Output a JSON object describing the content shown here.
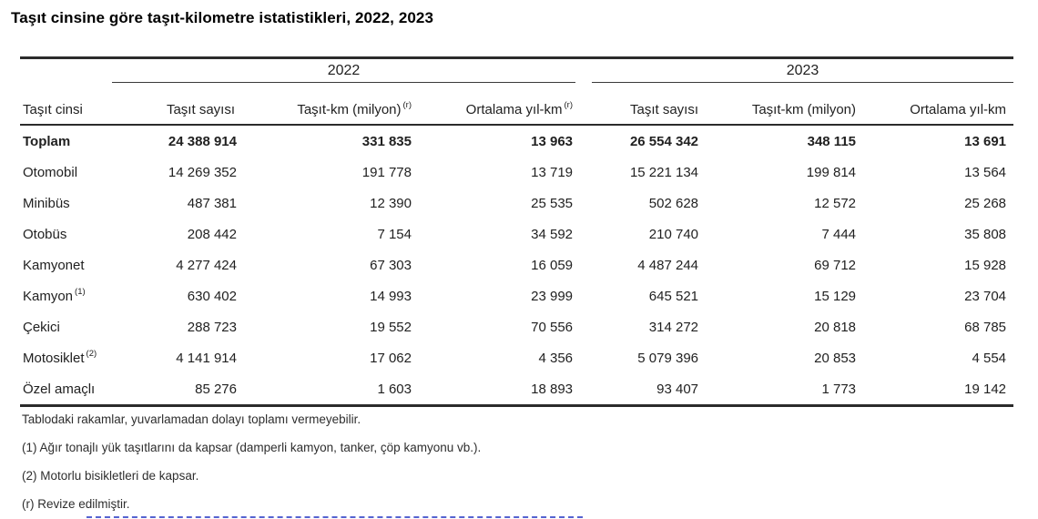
{
  "title": "Taşıt cinsine göre taşıt-kilometre istatistikleri, 2022, 2023",
  "table": {
    "row_header": "Taşıt cinsi",
    "year_groups": [
      {
        "year": "2022",
        "columns": [
          {
            "label": "Taşıt sayısı",
            "sup": ""
          },
          {
            "label": "Taşıt-km (milyon)",
            "sup": "(r)"
          },
          {
            "label": "Ortalama yıl-km",
            "sup": "(r)"
          }
        ]
      },
      {
        "year": "2023",
        "columns": [
          {
            "label": "Taşıt sayısı",
            "sup": ""
          },
          {
            "label": "Taşıt-km (milyon)",
            "sup": ""
          },
          {
            "label": "Ortalama yıl-km",
            "sup": ""
          }
        ]
      }
    ],
    "rows": [
      {
        "label": "Toplam",
        "sup": "",
        "bold": true,
        "values": [
          "24 388 914",
          "331 835",
          "13 963",
          "26 554 342",
          "348 115",
          "13 691"
        ]
      },
      {
        "label": "Otomobil",
        "sup": "",
        "bold": false,
        "values": [
          "14 269 352",
          "191 778",
          "13 719",
          "15 221 134",
          "199 814",
          "13 564"
        ]
      },
      {
        "label": "Minibüs",
        "sup": "",
        "bold": false,
        "values": [
          "487 381",
          "12 390",
          "25 535",
          "502 628",
          "12 572",
          "25 268"
        ]
      },
      {
        "label": "Otobüs",
        "sup": "",
        "bold": false,
        "values": [
          "208 442",
          "7 154",
          "34 592",
          "210 740",
          "7 444",
          "35 808"
        ]
      },
      {
        "label": "Kamyonet",
        "sup": "",
        "bold": false,
        "values": [
          "4 277 424",
          "67 303",
          "16 059",
          "4 487 244",
          "69 712",
          "15 928"
        ]
      },
      {
        "label": "Kamyon",
        "sup": "(1)",
        "bold": false,
        "values": [
          "630 402",
          "14 993",
          "23 999",
          "645 521",
          "15 129",
          "23 704"
        ]
      },
      {
        "label": "Çekici",
        "sup": "",
        "bold": false,
        "values": [
          "288 723",
          "19 552",
          "70 556",
          "314 272",
          "20 818",
          "68 785"
        ]
      },
      {
        "label": "Motosiklet",
        "sup": "(2)",
        "bold": false,
        "values": [
          "4 141 914",
          "17 062",
          "4 356",
          "5 079 396",
          "20 853",
          "4 554"
        ]
      },
      {
        "label": "Özel amaçlı",
        "sup": "",
        "bold": false,
        "values": [
          "85 276",
          "1 603",
          "18 893",
          "93 407",
          "1 773",
          "19 142"
        ]
      }
    ]
  },
  "footnotes": [
    "Tablodaki rakamlar, yuvarlamadan dolayı toplamı vermeyebilir.",
    "(1) Ağır tonajlı yük taşıtlarını da kapsar (damperli kamyon, tanker, çöp kamyonu vb.).",
    "(2) Motorlu bisikletleri de kapsar.",
    "(r) Revize edilmiştir."
  ],
  "colors": {
    "background": "#ffffff",
    "title_text": "#000000",
    "body_text": "#212121",
    "rule": "#2b2b2b",
    "footnote_text": "#2e2e2e",
    "cutoff_link_underline": "#3848c8"
  },
  "chart_data": {
    "type": "table",
    "title": "Taşıt cinsine göre taşıt-kilometre istatistikleri, 2022, 2023",
    "column_groups": [
      "2022",
      "2023"
    ],
    "columns": [
      "Taşıt cinsi",
      "2022 Taşıt sayısı",
      "2022 Taşıt-km (milyon) (r)",
      "2022 Ortalama yıl-km (r)",
      "2023 Taşıt sayısı",
      "2023 Taşıt-km (milyon)",
      "2023 Ortalama yıl-km"
    ],
    "rows": [
      [
        "Toplam",
        24388914,
        331835,
        13963,
        26554342,
        348115,
        13691
      ],
      [
        "Otomobil",
        14269352,
        191778,
        13719,
        15221134,
        199814,
        13564
      ],
      [
        "Minibüs",
        487381,
        12390,
        25535,
        502628,
        12572,
        25268
      ],
      [
        "Otobüs",
        208442,
        7154,
        34592,
        210740,
        7444,
        35808
      ],
      [
        "Kamyonet",
        4277424,
        67303,
        16059,
        4487244,
        69712,
        15928
      ],
      [
        "Kamyon (1)",
        630402,
        14993,
        23999,
        645521,
        15129,
        23704
      ],
      [
        "Çekici",
        288723,
        19552,
        70556,
        314272,
        20818,
        68785
      ],
      [
        "Motosiklet (2)",
        4141914,
        17062,
        4356,
        5079396,
        20853,
        4554
      ],
      [
        "Özel amaçlı",
        85276,
        1603,
        18893,
        93407,
        1773,
        19142
      ]
    ],
    "footnotes": [
      "Tablodaki rakamlar, yuvarlamadan dolayı toplamı vermeyebilir.",
      "(1) Ağır tonajlı yük taşıtlarını da kapsar (damperli kamyon, tanker, çöp kamyonu vb.).",
      "(2) Motorlu bisikletleri de kapsar.",
      "(r) Revize edilmiştir."
    ]
  }
}
